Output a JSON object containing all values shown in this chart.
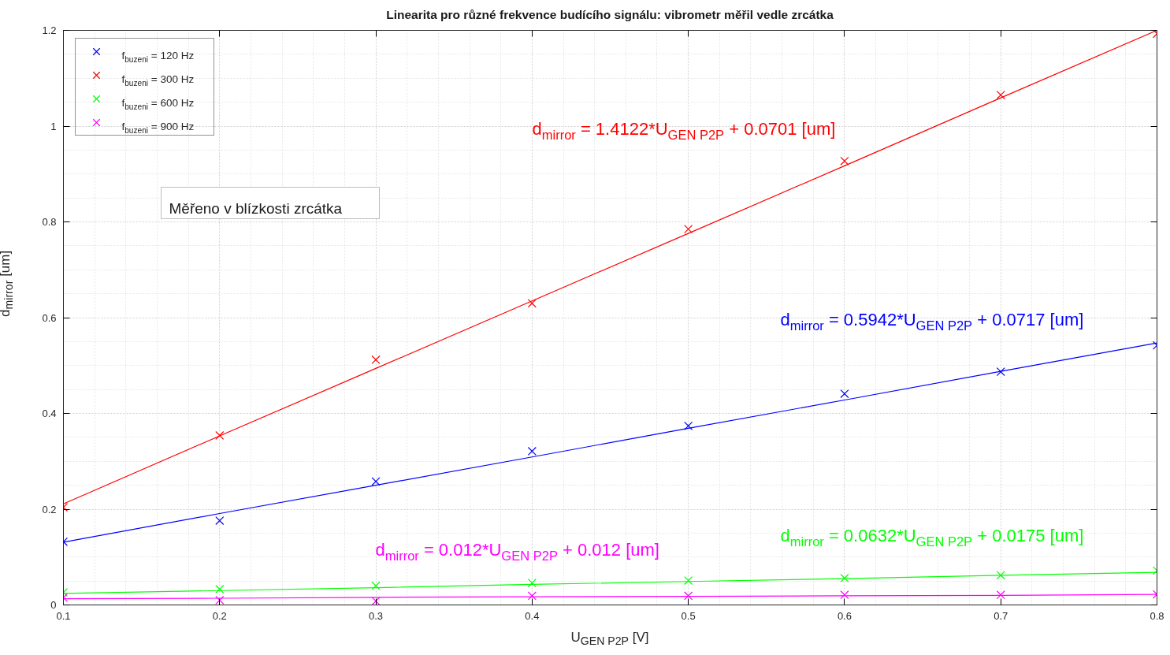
{
  "chart_data": {
    "type": "scatter",
    "title": "Linearita pro různé frekvence budícího signálu: vibrometr měřil vedle zrcátka",
    "xlabel": "U$_{GEN P2P}$ [V]",
    "ylabel": "d$_{mirror}$ [um]",
    "x": [
      0.1,
      0.2,
      0.3,
      0.4,
      0.5,
      0.6,
      0.7,
      0.8
    ],
    "series": [
      {
        "name": "f$_{buzeni}$ = 120 Hz",
        "color": "#0000ff",
        "values": [
          0.132,
          0.176,
          0.258,
          0.321,
          0.374,
          0.441,
          0.487,
          0.542
        ]
      },
      {
        "name": "f$_{buzeni}$ = 300 Hz",
        "color": "#ff0000",
        "values": [
          0.204,
          0.354,
          0.512,
          0.63,
          0.785,
          0.927,
          1.065,
          1.193
        ]
      },
      {
        "name": "f$_{buzeni}$ = 600 Hz",
        "color": "#00ff00",
        "values": [
          0.026,
          0.033,
          0.04,
          0.046,
          0.051,
          0.056,
          0.062,
          0.072
        ]
      },
      {
        "name": "f$_{buzeni}$ = 900 Hz",
        "color": "#ff00ff",
        "values": [
          0.015,
          0.01,
          0.008,
          0.019,
          0.019,
          0.021,
          0.021,
          0.022
        ]
      },
      {
        "type": "line",
        "marker": "none",
        "color": "#0000ff",
        "values": [
          0.131,
          0.191,
          0.25,
          0.309,
          0.369,
          0.428,
          0.488,
          0.547
        ]
      },
      {
        "type": "line",
        "marker": "none",
        "color": "#ff0000",
        "values": [
          0.211,
          0.353,
          0.494,
          0.635,
          0.776,
          0.917,
          1.059,
          1.2
        ]
      },
      {
        "type": "line",
        "marker": "none",
        "color": "#00ff00",
        "values": [
          0.024,
          0.03,
          0.036,
          0.043,
          0.049,
          0.055,
          0.062,
          0.068
        ]
      },
      {
        "type": "line",
        "marker": "none",
        "color": "#ff00ff",
        "values": [
          0.013,
          0.014,
          0.016,
          0.017,
          0.018,
          0.019,
          0.02,
          0.022
        ]
      }
    ],
    "annotations": [
      "d$_{mirror}$ = 1.4122*U$_{GEN P2P}$ + 0.0701 [um]",
      "d$_{mirror}$ = 0.5942*U$_{GEN P2P}$ + 0.0717 [um]",
      "d$_{mirror}$ = 0.012*U$_{GEN P2P}$ + 0.012 [um]",
      "d$_{mirror}$ = 0.0632*U$_{GEN P2P}$ + 0.0175 [um]",
      "Měřeno v blízkosti zrcátka"
    ],
    "xlim": [
      0.1,
      0.8
    ],
    "ylim": [
      0,
      1.2
    ],
    "xticks": [
      0.1,
      0.2,
      0.3,
      0.4,
      0.5,
      0.6,
      0.7,
      0.8
    ],
    "yticks": [
      0,
      0.2,
      0.4,
      0.6,
      0.8,
      1,
      1.2
    ],
    "grid": true,
    "legend": "top left",
    "marker": "cross",
    "line_style": "solid"
  }
}
